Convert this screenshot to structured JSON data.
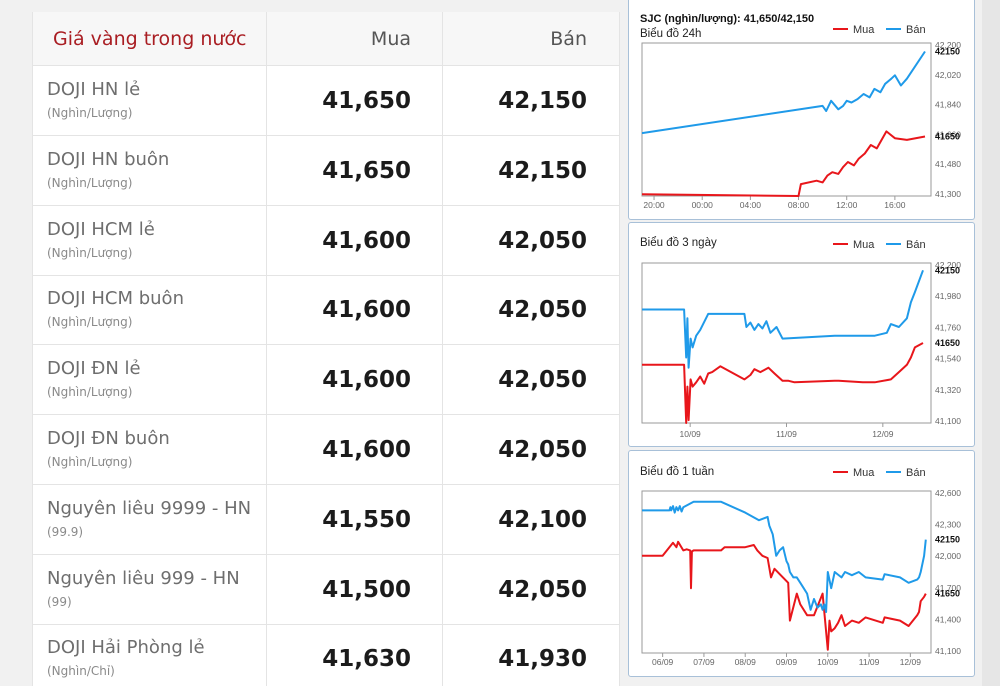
{
  "table": {
    "title": "Giá vàng trong nước",
    "col_buy": "Mua",
    "col_sell": "Bán",
    "rows": [
      {
        "name": "DOJI HN lẻ",
        "unit": "(Nghìn/Lượng)",
        "buy": "41,650",
        "sell": "42,150"
      },
      {
        "name": "DOJI HN buôn",
        "unit": "(Nghìn/Lượng)",
        "buy": "41,650",
        "sell": "42,150"
      },
      {
        "name": "DOJI HCM lẻ",
        "unit": "(Nghìn/Lượng)",
        "buy": "41,600",
        "sell": "42,050"
      },
      {
        "name": "DOJI HCM buôn",
        "unit": "(Nghìn/Lượng)",
        "buy": "41,600",
        "sell": "42,050"
      },
      {
        "name": "DOJI ĐN lẻ",
        "unit": "(Nghìn/Lượng)",
        "buy": "41,600",
        "sell": "42,050"
      },
      {
        "name": "DOJI ĐN buôn",
        "unit": "(Nghìn/Lượng)",
        "buy": "41,600",
        "sell": "42,050"
      },
      {
        "name": "Nguyên liêu 9999 - HN",
        "unit": "(99.9)",
        "buy": "41,550",
        "sell": "42,100"
      },
      {
        "name": "Nguyên liêu 999 - HN",
        "unit": "(99)",
        "buy": "41,500",
        "sell": "42,050"
      },
      {
        "name": "DOJI Hải Phòng lẻ",
        "unit": "(Nghìn/Chỉ)",
        "buy": "41,630",
        "sell": "41,930"
      }
    ]
  },
  "colors": {
    "buy": "#e8161b",
    "sell": "#1f9ae9",
    "title": "#a91d22"
  },
  "chart_data": [
    {
      "type": "line",
      "header": "SJC (nghìn/lượng): 41,650/42,150",
      "title": "Biểu đồ 24h",
      "legend": [
        "Mua",
        "Bán"
      ],
      "legend_position": "top-right",
      "xticks": [
        "20:00",
        "00:00",
        "04:00",
        "08:00",
        "12:00",
        "16:00"
      ],
      "yticks": [
        "42,200",
        "42,020",
        "41,840",
        "41,660",
        "41,480",
        "41,300"
      ],
      "ylim": [
        41300,
        42200
      ],
      "xlim": [
        0,
        24
      ],
      "tick_positions": [
        1,
        5,
        9,
        13,
        17,
        21
      ],
      "last_labels": {
        "Mua": "41650",
        "Bán": "42150"
      },
      "grid": false,
      "series": [
        {
          "name": "Mua",
          "x": [
            0,
            13,
            13.2,
            14.5,
            15.0,
            15.4,
            15.8,
            16.3,
            16.7,
            17.1,
            17.6,
            18.0,
            18.5,
            19.0,
            19.5,
            20.3,
            21.0,
            22.0,
            23.5
          ],
          "y": [
            41310,
            41300,
            41370,
            41390,
            41380,
            41420,
            41440,
            41430,
            41470,
            41500,
            41480,
            41520,
            41550,
            41600,
            41580,
            41680,
            41640,
            41630,
            41650
          ]
        },
        {
          "name": "Bán",
          "x": [
            0,
            15.0,
            15.3,
            15.7,
            16.3,
            16.7,
            17.0,
            17.4,
            17.9,
            18.4,
            18.9,
            19.3,
            19.8,
            20.2,
            20.7,
            21.0,
            21.5,
            22.0,
            23.5
          ],
          "y": [
            41670,
            41830,
            41800,
            41860,
            41810,
            41830,
            41860,
            41850,
            41870,
            41900,
            41880,
            41930,
            41910,
            41960,
            41990,
            42010,
            41950,
            41990,
            42150
          ]
        }
      ]
    },
    {
      "type": "line",
      "title": "Biểu đồ 3 ngày",
      "legend": [
        "Mua",
        "Bán"
      ],
      "legend_position": "top-right",
      "xticks": [
        "10/09",
        "11/09",
        "12/09"
      ],
      "yticks": [
        "42,200",
        "41,980",
        "41,760",
        "41,540",
        "41,320",
        "41,100"
      ],
      "ylim": [
        41100,
        42200
      ],
      "xlim": [
        0,
        72
      ],
      "tick_positions": [
        12,
        36,
        60
      ],
      "last_labels": {
        "Mua": "41650",
        "Bán": "42150"
      },
      "grid": false,
      "series": [
        {
          "name": "Mua",
          "x": [
            0,
            10.5,
            11.0,
            11.3,
            11.6,
            12.1,
            12.6,
            13.5,
            14.5,
            15.5,
            16.5,
            17.5,
            19.5,
            25.5,
            27.0,
            28.0,
            29.5,
            31.5,
            33.0,
            35.0,
            36.5,
            38.0,
            48.0,
            49.0,
            55.0,
            58.0,
            62.0,
            64.0,
            66.0,
            67.0,
            68.0,
            70.0
          ],
          "y": [
            41500,
            41500,
            41100,
            41350,
            41120,
            41400,
            41350,
            41380,
            41420,
            41370,
            41440,
            41450,
            41490,
            41400,
            41430,
            41470,
            41450,
            41480,
            41440,
            41390,
            41390,
            41380,
            41390,
            41390,
            41380,
            41380,
            41400,
            41450,
            41500,
            41550,
            41620,
            41650
          ]
        },
        {
          "name": "Bán",
          "x": [
            0,
            10.5,
            11.0,
            11.3,
            11.6,
            12.1,
            12.6,
            13.5,
            14.5,
            16.5,
            18.0,
            20.0,
            25.5,
            26.0,
            27.0,
            28.0,
            29.0,
            30.0,
            31.0,
            32.0,
            33.5,
            35.0,
            48.0,
            49.0,
            55.0,
            58.0,
            61.0,
            62.0,
            64.0,
            66.0,
            67.0,
            68.0,
            70.0
          ],
          "y": [
            41880,
            41880,
            41550,
            41820,
            41480,
            41680,
            41620,
            41700,
            41740,
            41850,
            41850,
            41850,
            41850,
            41760,
            41790,
            41740,
            41780,
            41750,
            41800,
            41720,
            41760,
            41680,
            41700,
            41700,
            41700,
            41700,
            41720,
            41780,
            41760,
            41820,
            41930,
            42000,
            42150
          ]
        }
      ]
    },
    {
      "type": "line",
      "title": "Biểu đồ 1 tuần",
      "legend": [
        "Mua",
        "Bán"
      ],
      "legend_position": "top-right",
      "xticks": [
        "06/09",
        "07/09",
        "08/09",
        "09/09",
        "10/09",
        "11/09",
        "12/09"
      ],
      "yticks": [
        "42,600",
        "42,300",
        "42,000",
        "41,700",
        "41,400",
        "41,100"
      ],
      "ylim": [
        41100,
        42600
      ],
      "xlim": [
        0,
        168
      ],
      "tick_positions": [
        12,
        36,
        60,
        84,
        108,
        132,
        156
      ],
      "last_labels": {
        "Mua": "41650",
        "Bán": "42150"
      },
      "grid": false,
      "series": [
        {
          "name": "Mua",
          "x": [
            0,
            12,
            18,
            20,
            21,
            24,
            26,
            28,
            28.5,
            29,
            30,
            36,
            46,
            48,
            60,
            65,
            67,
            70,
            73,
            75,
            77,
            85,
            86,
            90,
            92,
            96,
            100,
            105,
            108,
            109,
            110,
            112,
            114,
            116,
            118,
            122,
            126,
            130,
            140,
            141,
            150,
            155,
            160,
            161,
            162,
            164,
            165
          ],
          "y": [
            42000,
            42000,
            42120,
            42080,
            42130,
            42050,
            42060,
            42050,
            41700,
            42040,
            42050,
            42050,
            42050,
            42080,
            42080,
            42100,
            42050,
            42000,
            41980,
            41800,
            41880,
            41750,
            41400,
            41650,
            41550,
            41450,
            41450,
            41650,
            41130,
            41400,
            41300,
            41330,
            41380,
            41450,
            41350,
            41400,
            41380,
            41430,
            41380,
            41430,
            41400,
            41350,
            41450,
            41480,
            41580,
            41620,
            41650
          ]
        },
        {
          "name": "Bán",
          "x": [
            0,
            16,
            16.5,
            17,
            18,
            19,
            20,
            21,
            22,
            23,
            24,
            30,
            36,
            46,
            60,
            68,
            73,
            74,
            76,
            78,
            80,
            82,
            84,
            85,
            86,
            88,
            90,
            92,
            94,
            96,
            98,
            100,
            102,
            104,
            105,
            106,
            107,
            108,
            110,
            112,
            116,
            118,
            122,
            126,
            130,
            140,
            141,
            150,
            155,
            160,
            161,
            162,
            164,
            165
          ],
          "y": [
            42420,
            42420,
            42450,
            42420,
            42460,
            42400,
            42450,
            42420,
            42460,
            42410,
            42450,
            42500,
            42500,
            42500,
            42400,
            42330,
            42360,
            42280,
            42200,
            42000,
            42050,
            42080,
            41950,
            41920,
            41850,
            41800,
            41800,
            41750,
            41700,
            41650,
            41500,
            41600,
            41520,
            41550,
            41500,
            41550,
            41480,
            41850,
            41700,
            41850,
            41800,
            41850,
            41820,
            41850,
            41800,
            41780,
            41830,
            41800,
            41750,
            41780,
            41800,
            41850,
            42000,
            42150
          ]
        }
      ]
    }
  ]
}
